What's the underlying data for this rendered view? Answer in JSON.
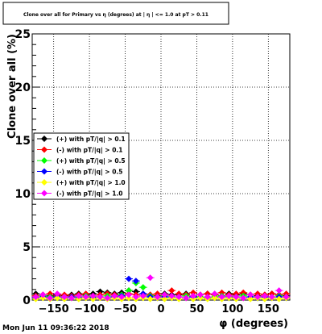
{
  "title": "Clone  over all for Primary vs η (degrees) at | η | <= 1.0 at pT > 0.11",
  "timestamp": "Mon Jun 11 09:36:22 2018",
  "chart_data": {
    "type": "scatter",
    "title": "Clone  over all for Primary vs η (degrees) at | η | <= 1.0 at pT > 0.11",
    "xlabel": "φ (degrees)",
    "ylabel": "Clone  over all (%)",
    "xlim": [
      -180,
      180
    ],
    "ylim": [
      0,
      25
    ],
    "xticks": [
      -150,
      -100,
      -50,
      0,
      50,
      100,
      150
    ],
    "xtick_labels": [
      "−150",
      "−100",
      "−50",
      "0",
      "50",
      "100",
      "150"
    ],
    "yticks": [
      0,
      5,
      10,
      15,
      20,
      25
    ],
    "ytick_labels": [
      "0",
      "5",
      "10",
      "15",
      "20",
      "25"
    ],
    "grid": true,
    "legend_position": "middle-left",
    "x": [
      -175,
      -165,
      -155,
      -145,
      -135,
      -125,
      -115,
      -105,
      -95,
      -85,
      -75,
      -65,
      -55,
      -45,
      -35,
      -25,
      -15,
      -5,
      5,
      15,
      25,
      35,
      45,
      55,
      65,
      75,
      85,
      95,
      105,
      115,
      125,
      135,
      145,
      155,
      165,
      175
    ],
    "series": [
      {
        "name": "(+) with pT/|q| > 0.1",
        "color": "#000000",
        "values": [
          0.6,
          0.5,
          0.4,
          0.5,
          0.4,
          0.5,
          0.6,
          0.5,
          0.6,
          0.8,
          0.7,
          0.6,
          0.7,
          0.9,
          0.8,
          0.6,
          0.5,
          0.4,
          0.6,
          0.5,
          0.5,
          0.6,
          0.4,
          0.5,
          0.6,
          0.5,
          0.4,
          0.6,
          0.5,
          0.6,
          0.5,
          0.4,
          0.5,
          0.6,
          0.5,
          0.4
        ]
      },
      {
        "name": "(-) with pT/|q| > 0.1",
        "color": "#ff0000",
        "values": [
          0.4,
          0.5,
          0.6,
          0.4,
          0.5,
          0.4,
          0.5,
          0.6,
          0.4,
          0.5,
          0.6,
          0.5,
          0.4,
          0.6,
          0.5,
          0.4,
          0.5,
          0.6,
          0.5,
          0.9,
          0.6,
          0.5,
          0.7,
          0.5,
          0.6,
          0.5,
          0.7,
          0.5,
          0.6,
          0.7,
          0.5,
          0.6,
          0.5,
          0.6,
          0.5,
          0.6
        ]
      },
      {
        "name": "(+) with pT/|q| > 0.5",
        "color": "#00ff00",
        "values": [
          0.3,
          0.4,
          0.3,
          0.2,
          0.3,
          0.2,
          0.3,
          0.4,
          0.3,
          0.3,
          0.4,
          0.3,
          0.5,
          0.9,
          1.6,
          1.2,
          0.4,
          0.3,
          0.4,
          0.3,
          0.3,
          0.4,
          0.3,
          0.3,
          0.2,
          0.3,
          0.4,
          0.3,
          0.3,
          0.4,
          0.3,
          0.2,
          0.3,
          0.3,
          0.4,
          0.3
        ]
      },
      {
        "name": "(-) with pT/|q| > 0.5",
        "color": "#0000ff",
        "values": [
          0.2,
          0.3,
          0.2,
          0.3,
          0.2,
          0.3,
          0.2,
          0.3,
          0.2,
          0.3,
          0.2,
          0.3,
          0.4,
          2.0,
          1.8,
          0.6,
          0.3,
          0.2,
          0.3,
          0.2,
          0.3,
          0.2,
          0.3,
          0.2,
          0.3,
          0.2,
          0.3,
          0.2,
          0.3,
          0.2,
          0.3,
          0.2,
          0.3,
          0.2,
          0.3,
          0.2
        ]
      },
      {
        "name": "(+) with pT/|q| > 1.0",
        "color": "#ffff00",
        "values": [
          0.1,
          0.2,
          0.1,
          0.2,
          0.1,
          0.2,
          0.1,
          0.2,
          0.1,
          0.2,
          0.1,
          0.2,
          0.1,
          0.2,
          0.1,
          0.2,
          0.1,
          0.2,
          0.1,
          0.2,
          0.1,
          0.2,
          0.1,
          0.2,
          0.1,
          0.2,
          0.1,
          0.2,
          0.1,
          0.2,
          0.1,
          0.2,
          0.1,
          0.2,
          0.1,
          0.2
        ]
      },
      {
        "name": "(-) with pT/|q| > 1.0",
        "color": "#ff00ff",
        "values": [
          0.3,
          0.5,
          0.2,
          0.6,
          0.3,
          0.2,
          0.4,
          0.3,
          0.4,
          0.3,
          0.2,
          0.4,
          0.3,
          0.5,
          0.3,
          0.4,
          2.1,
          0.3,
          0.5,
          0.4,
          0.3,
          0.2,
          0.4,
          0.5,
          0.3,
          0.6,
          0.3,
          0.4,
          0.3,
          0.2,
          0.5,
          0.3,
          0.4,
          0.3,
          0.9,
          0.3
        ]
      }
    ]
  }
}
